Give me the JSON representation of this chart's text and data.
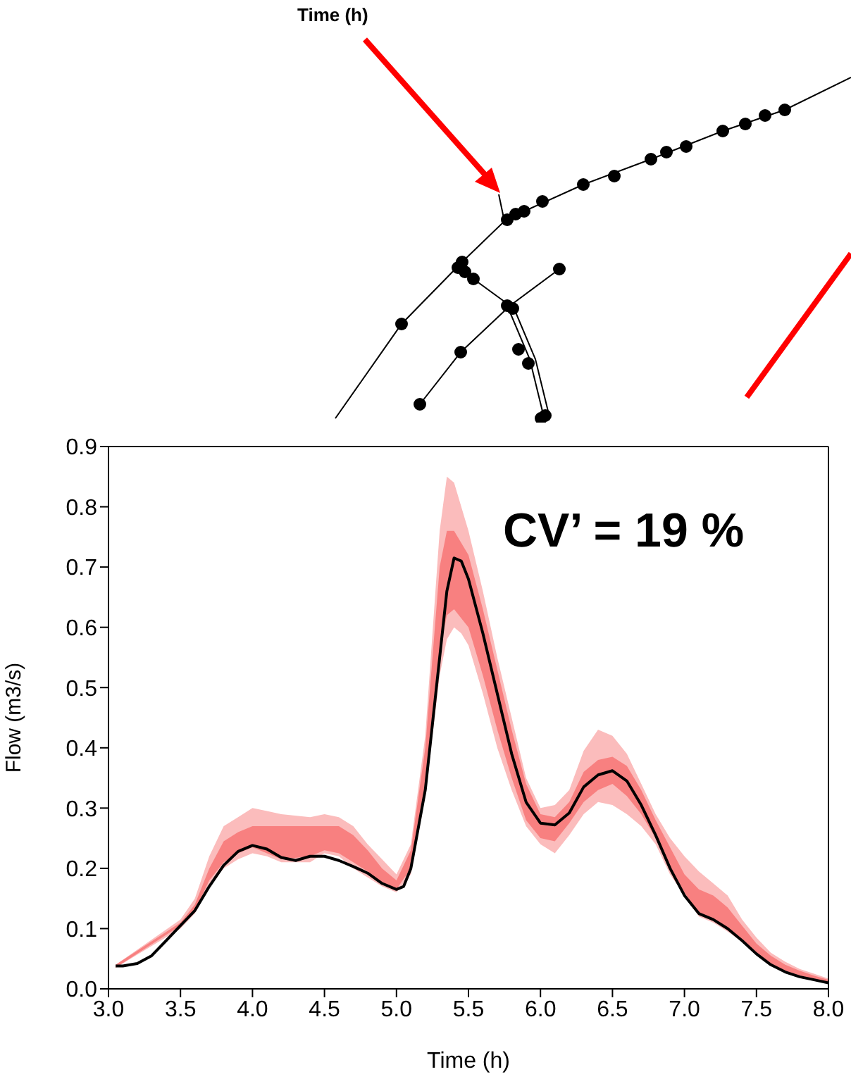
{
  "chart_data": {
    "type": "line",
    "xlabel": "Time (h)",
    "ylabel": "Flow (m3/s)",
    "xlim": [
      3.0,
      8.0
    ],
    "xticks": [
      {
        "value": 3.0,
        "label": "3.0"
      },
      {
        "value": 3.5,
        "label": "3.5"
      },
      {
        "value": 4.0,
        "label": "4.0"
      },
      {
        "value": 4.5,
        "label": "4.5"
      },
      {
        "value": 5.0,
        "label": "5.0"
      },
      {
        "value": 5.5,
        "label": "5.5"
      },
      {
        "value": 6.0,
        "label": "6.0"
      },
      {
        "value": 6.5,
        "label": "6.5"
      },
      {
        "value": 7.0,
        "label": "7.0"
      },
      {
        "value": 7.5,
        "label": "7.5"
      },
      {
        "value": 8.0,
        "label": "8.0"
      }
    ],
    "ylim": [
      0,
      0.9
    ],
    "yticks": [
      {
        "value": 0,
        "label": "0.0"
      },
      0.1,
      0.2,
      0.3,
      0.4,
      0.5,
      0.6,
      0.7,
      0.8,
      0.9
    ],
    "annotations": [
      "CV’ = 19 %",
      "Time (h)"
    ],
    "series": [
      {
        "color": "#fbbcbc",
        "x": [
          3.05,
          3.5,
          3.6,
          3.7,
          3.8,
          3.9,
          4.0,
          4.1,
          4.2,
          4.4,
          4.5,
          4.6,
          4.7,
          4.8,
          4.9,
          5.0,
          5.1,
          5.2,
          5.3,
          5.35,
          5.4,
          5.45,
          5.5,
          5.6,
          5.7,
          5.8,
          5.9,
          6.0,
          6.1,
          6.2,
          6.3,
          6.4,
          6.5,
          6.6,
          6.7,
          6.8,
          6.9,
          7.0,
          7.1,
          7.2,
          7.3,
          7.4,
          7.5,
          7.6,
          7.7,
          7.8,
          7.9,
          8.0
        ],
        "values": [
          null,
          null,
          null,
          null,
          null,
          null,
          null,
          null,
          null,
          null,
          null,
          null,
          null,
          null,
          null,
          null,
          null,
          null,
          null,
          null,
          null,
          null,
          null,
          null,
          null,
          null,
          null,
          null,
          null,
          null,
          null,
          null,
          null,
          null,
          null,
          null,
          null,
          null,
          null,
          null,
          null,
          null,
          null,
          null,
          null,
          null,
          null,
          null
        ],
        "lower": [
          0.035,
          0.1,
          0.125,
          0.17,
          0.2,
          0.215,
          0.225,
          0.22,
          0.21,
          0.21,
          0.225,
          0.22,
          0.2,
          0.185,
          0.17,
          0.16,
          0.19,
          0.32,
          0.52,
          0.58,
          0.6,
          0.59,
          0.57,
          0.49,
          0.4,
          0.33,
          0.27,
          0.24,
          0.225,
          0.255,
          0.29,
          0.31,
          0.305,
          0.29,
          0.27,
          0.24,
          0.19,
          0.155,
          0.12,
          0.11,
          0.095,
          0.078,
          0.058,
          0.04,
          0.03,
          0.022,
          0.016,
          0.01
        ],
        "upper": [
          0.04,
          0.115,
          0.15,
          0.22,
          0.27,
          0.285,
          0.3,
          0.295,
          0.29,
          0.285,
          0.29,
          0.285,
          0.27,
          0.24,
          0.215,
          0.19,
          0.24,
          0.42,
          0.76,
          0.85,
          0.84,
          0.8,
          0.76,
          0.66,
          0.55,
          0.45,
          0.35,
          0.3,
          0.305,
          0.33,
          0.395,
          0.43,
          0.42,
          0.39,
          0.34,
          0.29,
          0.25,
          0.22,
          0.195,
          0.175,
          0.155,
          0.115,
          0.085,
          0.06,
          0.045,
          0.033,
          0.025,
          0.017
        ]
      },
      {
        "color": "#f88080",
        "x": [
          3.05,
          3.5,
          3.6,
          3.7,
          3.8,
          3.9,
          4.0,
          4.2,
          4.4,
          4.5,
          4.6,
          4.7,
          4.8,
          4.9,
          5.0,
          5.1,
          5.2,
          5.3,
          5.35,
          5.4,
          5.5,
          5.6,
          5.7,
          5.8,
          5.9,
          6.0,
          6.1,
          6.2,
          6.3,
          6.4,
          6.5,
          6.6,
          6.7,
          6.8,
          6.9,
          7.0,
          7.1,
          7.2,
          7.3,
          7.4,
          7.5,
          7.6,
          7.7,
          7.8,
          7.9,
          8.0
        ],
        "values": [
          null,
          null,
          null,
          null,
          null,
          null,
          null,
          null,
          null,
          null,
          null,
          null,
          null,
          null,
          null,
          null,
          null,
          null,
          null,
          null,
          null,
          null,
          null,
          null,
          null,
          null,
          null,
          null,
          null,
          null,
          null,
          null,
          null,
          null,
          null,
          null,
          null,
          null,
          null,
          null,
          null,
          null,
          null,
          null,
          null,
          null
        ],
        "lower": [
          0.035,
          0.105,
          0.13,
          0.18,
          0.21,
          0.225,
          0.235,
          0.215,
          0.22,
          0.23,
          0.225,
          0.21,
          0.195,
          0.175,
          0.165,
          0.2,
          0.34,
          0.56,
          0.62,
          0.63,
          0.6,
          0.52,
          0.43,
          0.35,
          0.28,
          0.25,
          0.245,
          0.275,
          0.31,
          0.33,
          0.34,
          0.32,
          0.29,
          0.25,
          0.2,
          0.16,
          0.125,
          0.115,
          0.1,
          0.08,
          0.06,
          0.042,
          0.03,
          0.022,
          0.016,
          0.01
        ],
        "upper": [
          0.04,
          0.11,
          0.14,
          0.2,
          0.245,
          0.26,
          0.27,
          0.27,
          0.27,
          0.27,
          0.27,
          0.255,
          0.23,
          0.2,
          0.18,
          0.23,
          0.4,
          0.7,
          0.76,
          0.76,
          0.72,
          0.63,
          0.53,
          0.43,
          0.34,
          0.29,
          0.285,
          0.31,
          0.36,
          0.38,
          0.385,
          0.37,
          0.33,
          0.28,
          0.235,
          0.19,
          0.165,
          0.155,
          0.135,
          0.105,
          0.075,
          0.055,
          0.04,
          0.03,
          0.022,
          0.015
        ]
      },
      {
        "color": "#000000",
        "x": [
          3.05,
          3.1,
          3.2,
          3.3,
          3.4,
          3.5,
          3.6,
          3.7,
          3.8,
          3.9,
          4.0,
          4.1,
          4.2,
          4.3,
          4.4,
          4.5,
          4.6,
          4.7,
          4.8,
          4.9,
          5.0,
          5.05,
          5.1,
          5.2,
          5.3,
          5.35,
          5.4,
          5.45,
          5.5,
          5.6,
          5.7,
          5.8,
          5.9,
          6.0,
          6.1,
          6.2,
          6.3,
          6.4,
          6.5,
          6.6,
          6.7,
          6.8,
          6.9,
          7.0,
          7.1,
          7.2,
          7.3,
          7.4,
          7.5,
          7.6,
          7.7,
          7.8,
          7.9,
          8.0
        ],
        "values": [
          0.038,
          0.038,
          0.042,
          0.055,
          0.08,
          0.105,
          0.13,
          0.17,
          0.205,
          0.228,
          0.238,
          0.232,
          0.218,
          0.213,
          0.22,
          0.22,
          0.213,
          0.203,
          0.192,
          0.175,
          0.165,
          0.17,
          0.2,
          0.33,
          0.55,
          0.66,
          0.715,
          0.71,
          0.68,
          0.59,
          0.49,
          0.39,
          0.31,
          0.275,
          0.272,
          0.292,
          0.335,
          0.355,
          0.362,
          0.345,
          0.305,
          0.255,
          0.2,
          0.155,
          0.125,
          0.115,
          0.1,
          0.08,
          0.058,
          0.04,
          0.028,
          0.02,
          0.015,
          0.01
        ]
      }
    ]
  }
}
